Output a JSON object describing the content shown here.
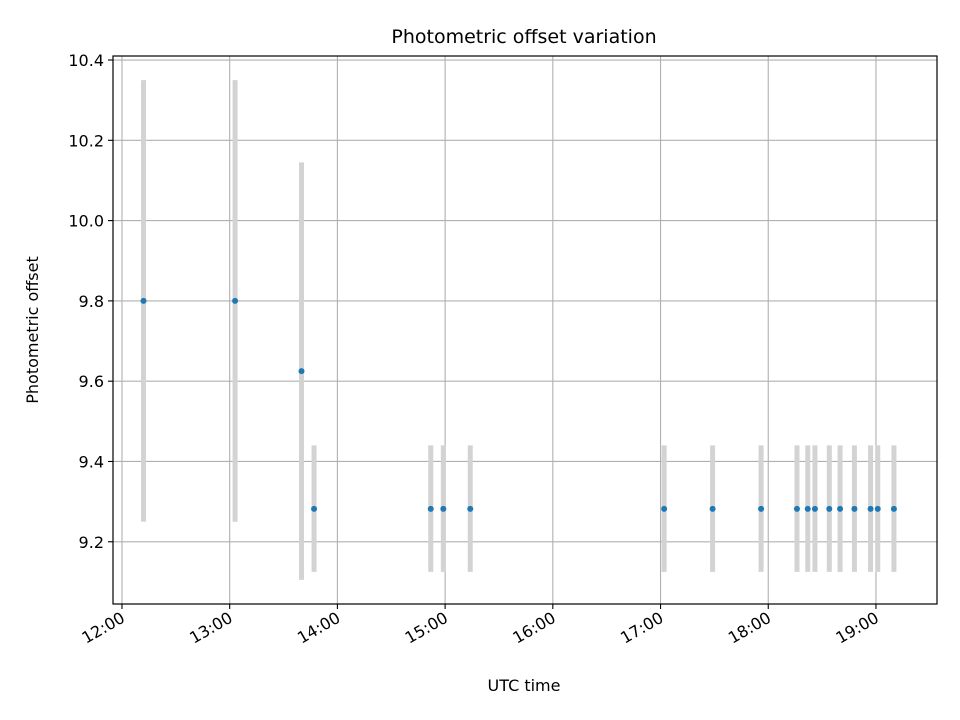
{
  "chart_data": {
    "type": "scatter",
    "title": "Photometric offset variation",
    "xlabel": "UTC time",
    "ylabel": "Photometric offset",
    "grid": true,
    "xlim": [
      "11:55",
      "19:34"
    ],
    "ylim": [
      9.045,
      10.41
    ],
    "x_ticks": [
      "12:00",
      "13:00",
      "14:00",
      "15:00",
      "16:00",
      "17:00",
      "18:00",
      "19:00"
    ],
    "y_ticks": [
      "9.2",
      "9.4",
      "9.6",
      "9.8",
      "10.0",
      "10.2",
      "10.4"
    ],
    "colors": {
      "point": "#1f77b4",
      "errorbar": "#d3d3d3",
      "grid": "#b0b0b0"
    },
    "points": [
      {
        "x": "12:12",
        "y": 9.8,
        "low": 9.25,
        "high": 10.35
      },
      {
        "x": "13:03",
        "y": 9.8,
        "low": 9.25,
        "high": 10.35
      },
      {
        "x": "13:40",
        "y": 9.625,
        "low": 9.105,
        "high": 10.145
      },
      {
        "x": "13:47",
        "y": 9.282,
        "low": 9.125,
        "high": 9.44
      },
      {
        "x": "14:52",
        "y": 9.282,
        "low": 9.125,
        "high": 9.44
      },
      {
        "x": "14:59",
        "y": 9.282,
        "low": 9.125,
        "high": 9.44
      },
      {
        "x": "15:14",
        "y": 9.282,
        "low": 9.125,
        "high": 9.44
      },
      {
        "x": "17:02",
        "y": 9.282,
        "low": 9.125,
        "high": 9.44
      },
      {
        "x": "17:29",
        "y": 9.282,
        "low": 9.125,
        "high": 9.44
      },
      {
        "x": "17:56",
        "y": 9.282,
        "low": 9.125,
        "high": 9.44
      },
      {
        "x": "18:16",
        "y": 9.282,
        "low": 9.125,
        "high": 9.44
      },
      {
        "x": "18:22",
        "y": 9.282,
        "low": 9.125,
        "high": 9.44
      },
      {
        "x": "18:26",
        "y": 9.282,
        "low": 9.125,
        "high": 9.44
      },
      {
        "x": "18:34",
        "y": 9.282,
        "low": 9.125,
        "high": 9.44
      },
      {
        "x": "18:40",
        "y": 9.282,
        "low": 9.125,
        "high": 9.44
      },
      {
        "x": "18:48",
        "y": 9.282,
        "low": 9.125,
        "high": 9.44
      },
      {
        "x": "18:57",
        "y": 9.282,
        "low": 9.125,
        "high": 9.44
      },
      {
        "x": "19:01",
        "y": 9.282,
        "low": 9.125,
        "high": 9.44
      },
      {
        "x": "19:10",
        "y": 9.282,
        "low": 9.125,
        "high": 9.44
      }
    ]
  }
}
